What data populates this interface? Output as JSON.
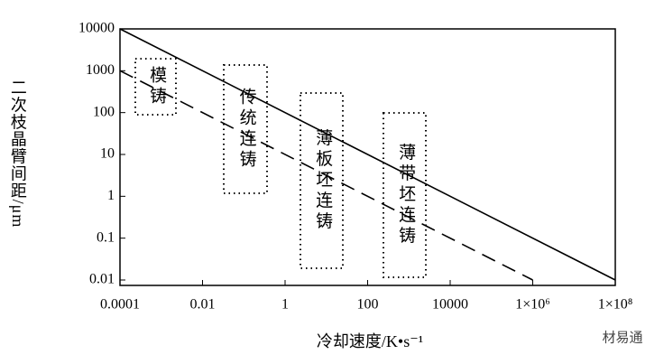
{
  "chart_data": {
    "type": "line",
    "x_label": "冷却速度/K•s⁻¹",
    "y_label": "二次枝晶臂间距/μm",
    "log_x": true,
    "log_y": true,
    "xlim": [
      0.0001,
      100000000
    ],
    "ylim": [
      0.01,
      10000
    ],
    "xticks": [
      0.0001,
      0.01,
      1,
      100,
      10000,
      {
        "value": 1000000,
        "label": "1×10⁶"
      },
      {
        "value": 100000000,
        "label": "1×10⁸"
      }
    ],
    "yticks": [
      0.01,
      0.1,
      1,
      10,
      100,
      1000,
      10000
    ],
    "series": [
      {
        "color": "#000000",
        "dash": false,
        "x": [
          0.0001,
          100000000
        ],
        "values": [
          10000,
          0.01
        ]
      },
      {
        "color": "#000000",
        "dash": true,
        "x": [
          0.0001,
          1000000
        ],
        "values": [
          1000,
          0.01
        ]
      }
    ],
    "annotations": [
      "模铸",
      "传统连铸",
      "薄板坯连铸",
      "薄带坯连铸"
    ],
    "watermark": "材易通"
  }
}
